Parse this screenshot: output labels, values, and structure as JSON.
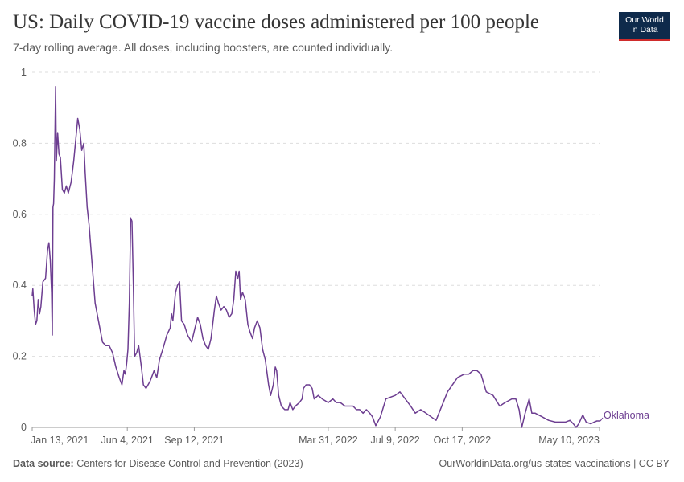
{
  "header": {
    "title": "US: Daily COVID-19 vaccine doses administered per 100 people",
    "subtitle": "7-day rolling average. All doses, including boosters, are counted individually."
  },
  "logo": {
    "line1": "Our World",
    "line2": "in Data"
  },
  "footer": {
    "source_label": "Data source:",
    "source_text": "Centers for Disease Control and Prevention (2023)",
    "url_text": "OurWorldinData.org/us-states-vaccinations | CC BY"
  },
  "colors": {
    "series": "#6d3e91",
    "grid": "#dddddd",
    "axis": "#999999",
    "text": "#5b5b5b"
  },
  "chart_data": {
    "type": "line",
    "title": "US: Daily COVID-19 vaccine doses administered per 100 people",
    "subtitle": "7-day rolling average. All doses, including boosters, are counted individually.",
    "xlabel": "",
    "ylabel": "",
    "ylim": [
      0,
      1
    ],
    "xlim": [
      "2021-01-13",
      "2023-05-10"
    ],
    "yticks": [
      0,
      0.2,
      0.4,
      0.6,
      0.8,
      1
    ],
    "ytick_labels": [
      "0",
      "0.2",
      "0.4",
      "0.6",
      "0.8",
      "1"
    ],
    "xticks": [
      {
        "date": "2021-01-13",
        "label": "Jan 13, 2021"
      },
      {
        "date": "2021-06-04",
        "label": "Jun 4, 2021"
      },
      {
        "date": "2021-09-12",
        "label": "Sep 12, 2021"
      },
      {
        "date": "2022-03-31",
        "label": "Mar 31, 2022"
      },
      {
        "date": "2022-07-09",
        "label": "Jul 9, 2022"
      },
      {
        "date": "2022-10-17",
        "label": "Oct 17, 2022"
      },
      {
        "date": "2023-05-10",
        "label": "May 10, 2023"
      }
    ],
    "grid": true,
    "legend_placement": "right-end-label",
    "series": [
      {
        "name": "Oklahoma",
        "points": [
          [
            "2021-01-13",
            0.37
          ],
          [
            "2021-01-14",
            0.39
          ],
          [
            "2021-01-16",
            0.33
          ],
          [
            "2021-01-18",
            0.29
          ],
          [
            "2021-01-20",
            0.3
          ],
          [
            "2021-01-22",
            0.36
          ],
          [
            "2021-01-24",
            0.32
          ],
          [
            "2021-01-26",
            0.34
          ],
          [
            "2021-01-29",
            0.41
          ],
          [
            "2021-02-02",
            0.42
          ],
          [
            "2021-02-05",
            0.5
          ],
          [
            "2021-02-07",
            0.52
          ],
          [
            "2021-02-09",
            0.47
          ],
          [
            "2021-02-11",
            0.38
          ],
          [
            "2021-02-12",
            0.26
          ],
          [
            "2021-02-13",
            0.62
          ],
          [
            "2021-02-14",
            0.63
          ],
          [
            "2021-02-15",
            0.7
          ],
          [
            "2021-02-17",
            0.96
          ],
          [
            "2021-02-18",
            0.75
          ],
          [
            "2021-02-20",
            0.83
          ],
          [
            "2021-02-22",
            0.77
          ],
          [
            "2021-02-24",
            0.76
          ],
          [
            "2021-02-27",
            0.67
          ],
          [
            "2021-03-02",
            0.66
          ],
          [
            "2021-03-05",
            0.68
          ],
          [
            "2021-03-08",
            0.66
          ],
          [
            "2021-03-12",
            0.69
          ],
          [
            "2021-03-16",
            0.75
          ],
          [
            "2021-03-19",
            0.81
          ],
          [
            "2021-03-22",
            0.87
          ],
          [
            "2021-03-25",
            0.84
          ],
          [
            "2021-03-28",
            0.78
          ],
          [
            "2021-03-31",
            0.8
          ],
          [
            "2021-04-02",
            0.72
          ],
          [
            "2021-04-05",
            0.62
          ],
          [
            "2021-04-08",
            0.57
          ],
          [
            "2021-04-12",
            0.47
          ],
          [
            "2021-04-17",
            0.35
          ],
          [
            "2021-04-23",
            0.29
          ],
          [
            "2021-04-28",
            0.24
          ],
          [
            "2021-05-03",
            0.23
          ],
          [
            "2021-05-08",
            0.23
          ],
          [
            "2021-05-13",
            0.21
          ],
          [
            "2021-05-18",
            0.17
          ],
          [
            "2021-05-23",
            0.14
          ],
          [
            "2021-05-27",
            0.12
          ],
          [
            "2021-05-30",
            0.16
          ],
          [
            "2021-06-01",
            0.15
          ],
          [
            "2021-06-03",
            0.18
          ],
          [
            "2021-06-05",
            0.22
          ],
          [
            "2021-06-07",
            0.35
          ],
          [
            "2021-06-09",
            0.59
          ],
          [
            "2021-06-11",
            0.58
          ],
          [
            "2021-06-13",
            0.4
          ],
          [
            "2021-06-15",
            0.2
          ],
          [
            "2021-06-18",
            0.21
          ],
          [
            "2021-06-21",
            0.23
          ],
          [
            "2021-06-25",
            0.17
          ],
          [
            "2021-06-28",
            0.12
          ],
          [
            "2021-07-02",
            0.11
          ],
          [
            "2021-07-08",
            0.13
          ],
          [
            "2021-07-14",
            0.16
          ],
          [
            "2021-07-18",
            0.14
          ],
          [
            "2021-07-22",
            0.19
          ],
          [
            "2021-07-27",
            0.22
          ],
          [
            "2021-08-02",
            0.26
          ],
          [
            "2021-08-07",
            0.28
          ],
          [
            "2021-08-09",
            0.32
          ],
          [
            "2021-08-11",
            0.3
          ],
          [
            "2021-08-15",
            0.38
          ],
          [
            "2021-08-18",
            0.4
          ],
          [
            "2021-08-21",
            0.41
          ],
          [
            "2021-08-24",
            0.3
          ],
          [
            "2021-08-28",
            0.29
          ],
          [
            "2021-09-02",
            0.26
          ],
          [
            "2021-09-08",
            0.24
          ],
          [
            "2021-09-13",
            0.28
          ],
          [
            "2021-09-17",
            0.31
          ],
          [
            "2021-09-21",
            0.29
          ],
          [
            "2021-09-25",
            0.25
          ],
          [
            "2021-09-29",
            0.23
          ],
          [
            "2021-10-03",
            0.22
          ],
          [
            "2021-10-07",
            0.25
          ],
          [
            "2021-10-12",
            0.33
          ],
          [
            "2021-10-15",
            0.37
          ],
          [
            "2021-10-18",
            0.35
          ],
          [
            "2021-10-22",
            0.33
          ],
          [
            "2021-10-26",
            0.34
          ],
          [
            "2021-10-30",
            0.33
          ],
          [
            "2021-11-03",
            0.31
          ],
          [
            "2021-11-07",
            0.32
          ],
          [
            "2021-11-10",
            0.36
          ],
          [
            "2021-11-13",
            0.44
          ],
          [
            "2021-11-16",
            0.42
          ],
          [
            "2021-11-18",
            0.44
          ],
          [
            "2021-11-20",
            0.36
          ],
          [
            "2021-11-23",
            0.38
          ],
          [
            "2021-11-27",
            0.36
          ],
          [
            "2021-12-01",
            0.29
          ],
          [
            "2021-12-04",
            0.27
          ],
          [
            "2021-12-08",
            0.25
          ],
          [
            "2021-12-11",
            0.28
          ],
          [
            "2021-12-15",
            0.3
          ],
          [
            "2021-12-19",
            0.28
          ],
          [
            "2021-12-23",
            0.22
          ],
          [
            "2021-12-27",
            0.19
          ],
          [
            "2022-01-01",
            0.12
          ],
          [
            "2022-01-04",
            0.09
          ],
          [
            "2022-01-08",
            0.12
          ],
          [
            "2022-01-11",
            0.17
          ],
          [
            "2022-01-13",
            0.16
          ],
          [
            "2022-01-16",
            0.09
          ],
          [
            "2022-01-20",
            0.06
          ],
          [
            "2022-01-25",
            0.05
          ],
          [
            "2022-01-30",
            0.05
          ],
          [
            "2022-02-02",
            0.07
          ],
          [
            "2022-02-06",
            0.05
          ],
          [
            "2022-02-10",
            0.06
          ],
          [
            "2022-02-16",
            0.07
          ],
          [
            "2022-02-20",
            0.08
          ],
          [
            "2022-02-22",
            0.11
          ],
          [
            "2022-02-26",
            0.12
          ],
          [
            "2022-03-03",
            0.12
          ],
          [
            "2022-03-07",
            0.11
          ],
          [
            "2022-03-10",
            0.08
          ],
          [
            "2022-03-16",
            0.09
          ],
          [
            "2022-03-22",
            0.08
          ],
          [
            "2022-03-31",
            0.07
          ],
          [
            "2022-04-07",
            0.08
          ],
          [
            "2022-04-12",
            0.07
          ],
          [
            "2022-04-18",
            0.07
          ],
          [
            "2022-04-25",
            0.06
          ],
          [
            "2022-05-02",
            0.06
          ],
          [
            "2022-05-07",
            0.06
          ],
          [
            "2022-05-12",
            0.05
          ],
          [
            "2022-05-17",
            0.05
          ],
          [
            "2022-05-22",
            0.04
          ],
          [
            "2022-05-27",
            0.05
          ],
          [
            "2022-06-01",
            0.04
          ],
          [
            "2022-06-05",
            0.03
          ],
          [
            "2022-06-10",
            0.005
          ],
          [
            "2022-06-17",
            0.03
          ],
          [
            "2022-06-25",
            0.08
          ],
          [
            "2022-07-09",
            0.09
          ],
          [
            "2022-07-16",
            0.1
          ],
          [
            "2022-07-24",
            0.08
          ],
          [
            "2022-08-01",
            0.06
          ],
          [
            "2022-08-08",
            0.04
          ],
          [
            "2022-08-16",
            0.05
          ],
          [
            "2022-08-24",
            0.04
          ],
          [
            "2022-09-08",
            0.02
          ],
          [
            "2022-09-25",
            0.1
          ],
          [
            "2022-10-10",
            0.14
          ],
          [
            "2022-10-20",
            0.15
          ],
          [
            "2022-10-27",
            0.15
          ],
          [
            "2022-11-02",
            0.16
          ],
          [
            "2022-11-08",
            0.16
          ],
          [
            "2022-11-14",
            0.15
          ],
          [
            "2022-11-22",
            0.1
          ],
          [
            "2022-12-02",
            0.09
          ],
          [
            "2022-12-12",
            0.06
          ],
          [
            "2022-12-20",
            0.07
          ],
          [
            "2022-12-30",
            0.08
          ],
          [
            "2023-01-05",
            0.08
          ],
          [
            "2023-01-10",
            0.05
          ],
          [
            "2023-01-14",
            0.0
          ],
          [
            "2023-01-19",
            0.04
          ],
          [
            "2023-01-25",
            0.08
          ],
          [
            "2023-01-29",
            0.04
          ],
          [
            "2023-02-03",
            0.04
          ],
          [
            "2023-02-13",
            0.03
          ],
          [
            "2023-02-23",
            0.02
          ],
          [
            "2023-03-05",
            0.015
          ],
          [
            "2023-03-13",
            0.015
          ],
          [
            "2023-03-20",
            0.015
          ],
          [
            "2023-03-27",
            0.02
          ],
          [
            "2023-04-01",
            0.01
          ],
          [
            "2023-04-05",
            0.0
          ],
          [
            "2023-04-09",
            0.01
          ],
          [
            "2023-04-15",
            0.035
          ],
          [
            "2023-04-20",
            0.015
          ],
          [
            "2023-04-27",
            0.01
          ],
          [
            "2023-05-02",
            0.015
          ],
          [
            "2023-05-06",
            0.018
          ],
          [
            "2023-05-10",
            0.018
          ]
        ]
      }
    ]
  }
}
